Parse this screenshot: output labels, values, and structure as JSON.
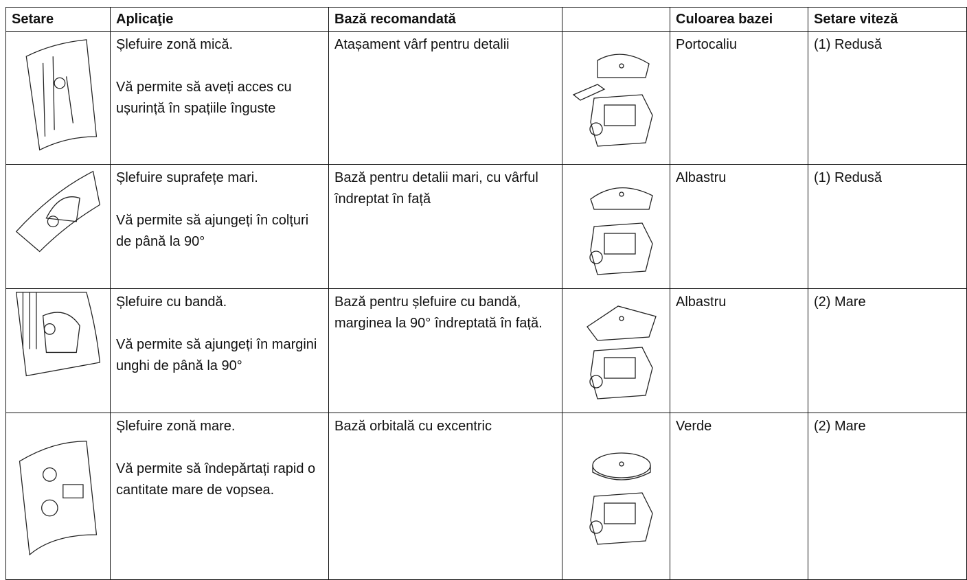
{
  "table": {
    "header": [
      "Setare",
      "Aplicaţie",
      "Bază recomandată",
      "Culoarea bazei",
      "Setare viteză"
    ],
    "rows": [
      {
        "application": [
          "Șlefuire zonă mică.",
          "Vă permite să aveți acces cu ușurință în spațiile înguste"
        ],
        "base": "Atașament vârf pentru detalii",
        "color": "Portocaliu",
        "speed": "(1) Redusă"
      },
      {
        "application": [
          "Șlefuire suprafețe mari.",
          "Vă permite să ajungeți în colțuri de până la 90°"
        ],
        "base": "Bază pentru detalii mari, cu vârful îndreptat în față",
        "color": "Albastru",
        "speed": "(1) Redusă"
      },
      {
        "application": [
          "Șlefuire cu bandă.",
          "Vă permite să ajungeți în margini unghi de până la 90°"
        ],
        "base": "Bază pentru șlefuire cu bandă, marginea la 90° îndreptată în față.",
        "color": "Albastru",
        "speed": "(2) Mare"
      },
      {
        "application": [
          "Șlefuire zonă mare.",
          "Vă permite să îndepărtați rapid o cantitate mare de vopsea."
        ],
        "base": "Bază orbitală cu excentric",
        "color": "Verde",
        "speed": "(2) Mare"
      }
    ]
  }
}
